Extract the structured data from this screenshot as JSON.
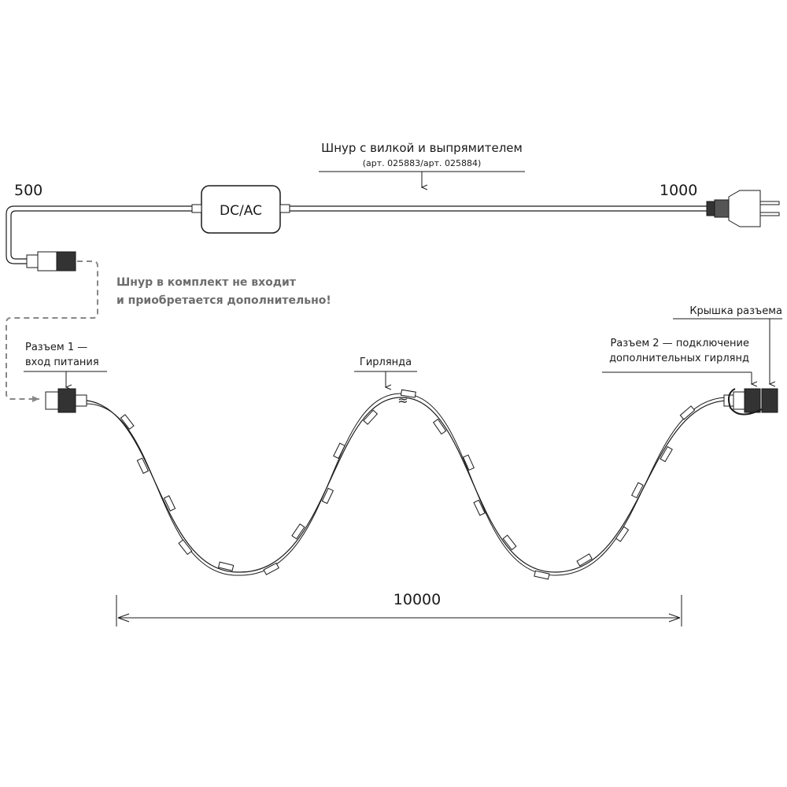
{
  "labels": {
    "cord_title": "Шнур с вилкой и выпрямителем",
    "cord_articles": "(арт. 025883/арт. 025884)",
    "converter": "DC/AC",
    "dim_500": "500",
    "dim_1000": "1000",
    "dim_10000": "10000",
    "not_included_line1": "Шнур в комплект не входит",
    "not_included_line2": "и приобретается дополнительно!",
    "connector1_line1": "Разъем 1 —",
    "connector1_line2": "вход питания",
    "garland": "Гирлянда",
    "connector2_line1": "Разъем 2 — подключение",
    "connector2_line2": "дополнительных гирлянд",
    "cap": "Крышка разъема"
  },
  "colors": {
    "line": "#1a1a1a",
    "note": "#6d6d6d"
  }
}
